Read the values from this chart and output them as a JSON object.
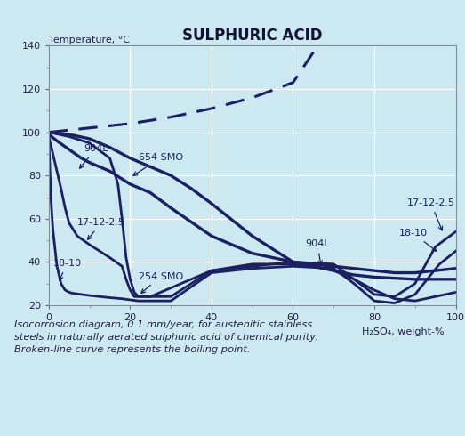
{
  "title": "SULPHURIC ACID",
  "xlabel": "H₂SO₄, weight-%",
  "ylabel": "Temperature, °C",
  "xlim": [
    0,
    100
  ],
  "ylim": [
    20,
    140
  ],
  "xticks": [
    0,
    20,
    40,
    60,
    80,
    100
  ],
  "yticks": [
    20,
    40,
    60,
    80,
    100,
    120,
    140
  ],
  "bg_color": "#cce8f0",
  "curve_color": "#1a2060",
  "boiling_curve": {
    "x": [
      0,
      10,
      20,
      30,
      40,
      50,
      60,
      65
    ],
    "y": [
      100,
      102,
      104,
      107,
      111,
      116,
      123,
      137
    ]
  },
  "curve_18_10": {
    "x": [
      0,
      0.5,
      1,
      2,
      3,
      4,
      5,
      6,
      8,
      10,
      15,
      18,
      20,
      22,
      30,
      40,
      50,
      60,
      70,
      75,
      80,
      85,
      90,
      93,
      96,
      100
    ],
    "y": [
      97,
      70,
      55,
      38,
      30,
      27,
      26,
      25.5,
      25,
      24.5,
      23.5,
      23,
      22.5,
      22,
      22,
      35,
      37,
      38,
      37,
      30,
      22,
      21,
      25,
      32,
      39,
      45
    ]
  },
  "curve_17_12_2_5": {
    "x": [
      0,
      1,
      2,
      3,
      4,
      5,
      7,
      10,
      15,
      18,
      19,
      20,
      21,
      25,
      40,
      60,
      70,
      75,
      80,
      85,
      90,
      95,
      100
    ],
    "y": [
      98,
      90,
      82,
      74,
      65,
      58,
      52,
      48,
      42,
      38,
      32,
      27,
      24,
      24,
      36,
      40,
      39,
      32,
      25,
      24,
      30,
      47,
      54
    ]
  },
  "curve_904L": {
    "x": [
      0,
      2,
      5,
      8,
      10,
      15,
      20,
      25,
      30,
      40,
      50,
      60,
      65,
      70,
      75,
      80,
      85,
      90,
      95,
      100
    ],
    "y": [
      99,
      96,
      92,
      88,
      86,
      82,
      76,
      72,
      65,
      52,
      44,
      40,
      39,
      38,
      37,
      36,
      35,
      35,
      36,
      37
    ]
  },
  "curve_654SMO": {
    "x": [
      0,
      5,
      10,
      15,
      20,
      25,
      30,
      35,
      40,
      50,
      60,
      65,
      70,
      75,
      80,
      90,
      100
    ],
    "y": [
      100,
      99,
      97,
      93,
      88,
      84,
      80,
      74,
      67,
      52,
      40,
      38,
      36,
      34,
      33,
      32,
      32
    ]
  },
  "curve_254SMO": {
    "x": [
      0,
      5,
      10,
      15,
      17,
      18,
      19,
      20,
      21,
      22,
      25,
      30,
      40,
      50,
      60,
      65,
      70,
      75,
      80,
      85,
      90,
      95,
      100
    ],
    "y": [
      100,
      98,
      95,
      88,
      76,
      60,
      42,
      32,
      26,
      24,
      24,
      24,
      36,
      39,
      39,
      38,
      36,
      32,
      27,
      23,
      22,
      24,
      26
    ]
  },
  "caption": "Isocorrosion diagram, 0.1 mm/year, for austenitic stainless\nsteels in naturally aerated sulphuric acid of chemical purity.\nBroken-line curve represents the boiling point."
}
